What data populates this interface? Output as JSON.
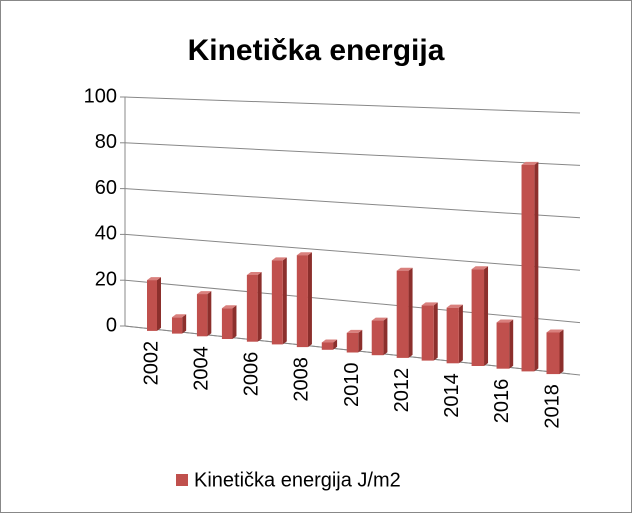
{
  "chart_data": {
    "type": "bar",
    "title": "Kinetička energija",
    "categories": [
      "2002",
      null,
      "2004",
      null,
      "2006",
      null,
      "2008",
      null,
      "2010",
      null,
      "2012",
      null,
      "2014",
      null,
      "2016",
      null,
      "2018"
    ],
    "series": [
      {
        "name": "Kinetička energija J/m2",
        "color": "#c0504d",
        "values": [
          22,
          7,
          18,
          13,
          28,
          35,
          38,
          3,
          8,
          14,
          35,
          22,
          22,
          38,
          18,
          80,
          16
        ]
      }
    ],
    "ylim": [
      0,
      100
    ],
    "yticks": [
      0,
      20,
      40,
      60,
      80,
      100
    ],
    "grid": true,
    "legend": "bottom"
  }
}
